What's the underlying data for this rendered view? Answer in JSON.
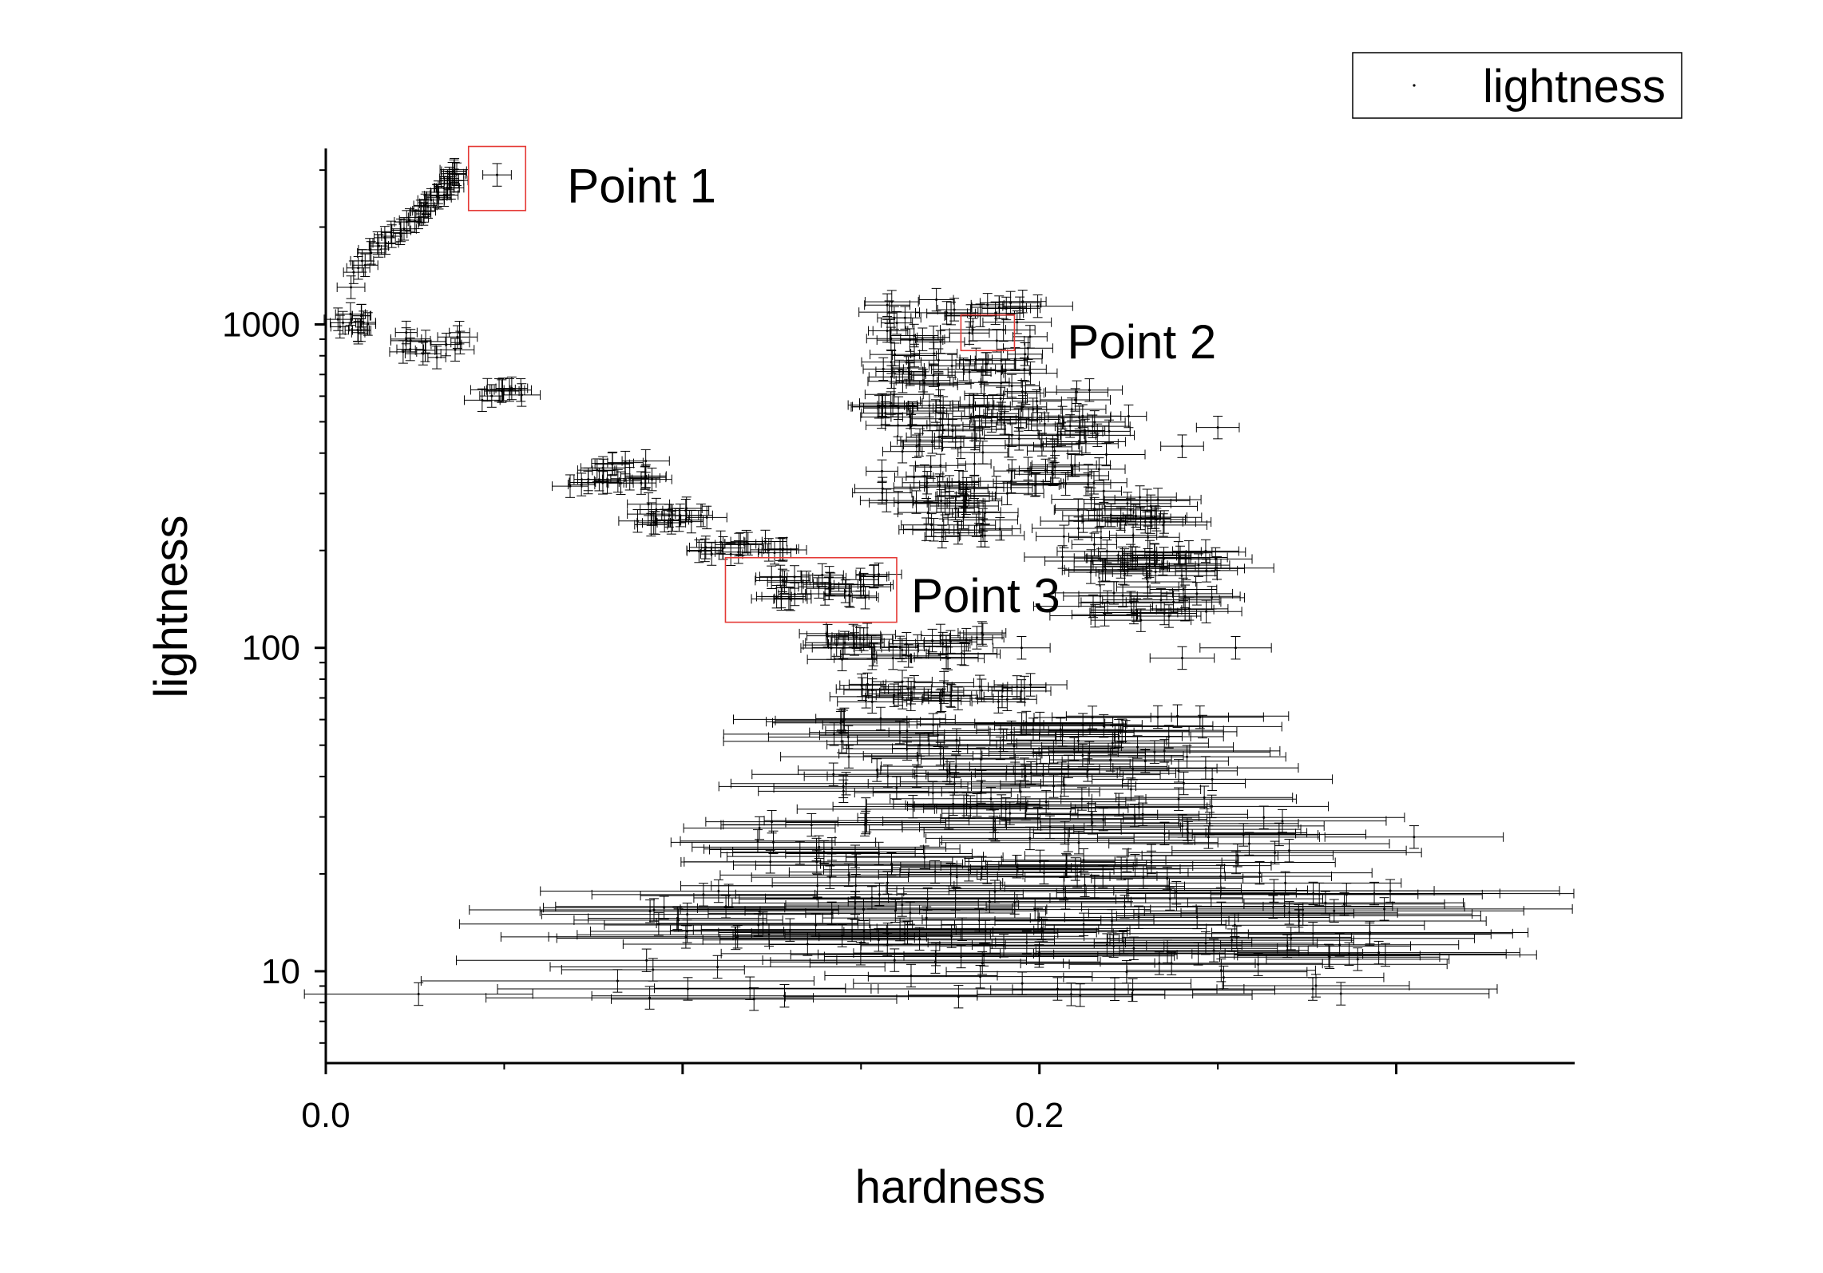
{
  "chart_data": {
    "type": "scatter",
    "xlabel": "hardness",
    "ylabel": "lightness",
    "xlim": [
      0.0,
      0.35
    ],
    "ylim": [
      5.2,
      3500
    ],
    "y_scale": "log",
    "x_ticks": [
      0.0,
      0.1,
      0.2,
      0.3
    ],
    "x_tick_labels": [
      "0.0",
      "",
      "0.2",
      ""
    ],
    "y_ticks": [
      10,
      100,
      1000
    ],
    "y_tick_labels": [
      "10",
      "100",
      "1000"
    ],
    "grid": false,
    "error_bars": "horizontal and vertical",
    "legend": {
      "position": "top-right",
      "entries": [
        "lightness"
      ]
    },
    "series": [
      {
        "name": "lightness",
        "clusters": [
          {
            "x_range": [
              0.007,
              0.036
            ],
            "y_range": [
              1300,
              3000
            ],
            "shape": "arc",
            "count": 45,
            "xerr": 0.003
          },
          {
            "x_range": [
              0.003,
              0.012
            ],
            "y_range": [
              920,
              1080
            ],
            "count": 12,
            "xerr": 0.003
          },
          {
            "x_range": [
              0.02,
              0.038
            ],
            "y_range": [
              780,
              950
            ],
            "count": 14,
            "xerr": 0.004
          },
          {
            "x_range": [
              0.04,
              0.055
            ],
            "y_range": [
              580,
              640
            ],
            "count": 10,
            "xerr": 0.004
          },
          {
            "x_range": [
              0.067,
              0.092
            ],
            "y_range": [
              310,
              380
            ],
            "count": 22,
            "xerr": 0.005
          },
          {
            "x_range": [
              0.085,
              0.107
            ],
            "y_range": [
              240,
              280
            ],
            "count": 18,
            "xerr": 0.005
          },
          {
            "x_range": [
              0.104,
              0.13
            ],
            "y_range": [
              190,
              215
            ],
            "count": 18,
            "xerr": 0.005
          },
          {
            "x_range": [
              0.12,
              0.155
            ],
            "y_range": [
              140,
              170
            ],
            "count": 30,
            "xerr": 0.006
          },
          {
            "x_range": [
              0.14,
              0.185
            ],
            "y_range": [
              92,
              112
            ],
            "count": 35,
            "xerr": 0.008
          },
          {
            "x_range": [
              0.15,
              0.2
            ],
            "y_range": [
              68,
              80
            ],
            "count": 30,
            "xerr": 0.008
          },
          {
            "x_range": [
              0.155,
              0.2
            ],
            "y_range": [
              500,
              1200
            ],
            "count": 90,
            "xerr": 0.007
          },
          {
            "x_range": [
              0.155,
              0.185
            ],
            "y_range": [
              280,
              600
            ],
            "count": 45,
            "xerr": 0.007
          },
          {
            "x_range": [
              0.165,
              0.19
            ],
            "y_range": [
              220,
              320
            ],
            "count": 30,
            "xerr": 0.008
          },
          {
            "x_range": [
              0.19,
              0.22
            ],
            "y_range": [
              300,
              650
            ],
            "count": 50,
            "xerr": 0.008
          },
          {
            "x_range": [
              0.205,
              0.235
            ],
            "y_range": [
              170,
              300
            ],
            "count": 40,
            "xerr": 0.01
          },
          {
            "x_range": [
              0.215,
              0.25
            ],
            "y_range": [
              120,
              200
            ],
            "count": 45,
            "xerr": 0.012
          },
          {
            "x_range": [
              0.14,
              0.25
            ],
            "y_range": [
              30,
              62
            ],
            "count": 110,
            "xerr": 0.025
          },
          {
            "x_range": [
              0.12,
              0.27
            ],
            "y_range": [
              18,
              30
            ],
            "count": 80,
            "xerr": 0.03
          },
          {
            "x_range": [
              0.09,
              0.3
            ],
            "y_range": [
              11,
              18
            ],
            "count": 110,
            "xerr": 0.04
          },
          {
            "x_range": [
              0.08,
              0.29
            ],
            "y_range": [
              8.2,
              11
            ],
            "count": 30,
            "xerr": 0.04
          }
        ],
        "points": [
          {
            "x": 0.048,
            "y": 2900,
            "xerr": 0.004
          },
          {
            "x": 0.026,
            "y": 8.5,
            "xerr": 0.032
          },
          {
            "x": 0.19,
            "y": 12,
            "xerr": 0.04
          },
          {
            "x": 0.25,
            "y": 480,
            "xerr": 0.006
          },
          {
            "x": 0.24,
            "y": 420,
            "xerr": 0.006
          },
          {
            "x": 0.225,
            "y": 520,
            "xerr": 0.005
          },
          {
            "x": 0.255,
            "y": 100,
            "xerr": 0.01
          },
          {
            "x": 0.24,
            "y": 93,
            "xerr": 0.009
          },
          {
            "x": 0.195,
            "y": 100,
            "xerr": 0.008
          },
          {
            "x": 0.245,
            "y": 61,
            "xerr": 0.008
          },
          {
            "x": 0.305,
            "y": 26,
            "xerr": 0.025
          },
          {
            "x": 0.12,
            "y": 8.2,
            "xerr": 0.04
          }
        ]
      }
    ],
    "annotations": [
      {
        "text": "Point 1",
        "box_x": [
          0.04,
          0.056
        ],
        "box_y": [
          2250,
          3550
        ]
      },
      {
        "text": "Point 2",
        "box_x": [
          0.178,
          0.193
        ],
        "box_y": [
          830,
          1070
        ]
      },
      {
        "text": "Point 3",
        "box_x": [
          0.112,
          0.16
        ],
        "box_y": [
          120,
          190
        ]
      }
    ],
    "colors": {
      "marker": "#000000",
      "annotation_box": "#e53935",
      "axis": "#000000"
    }
  }
}
